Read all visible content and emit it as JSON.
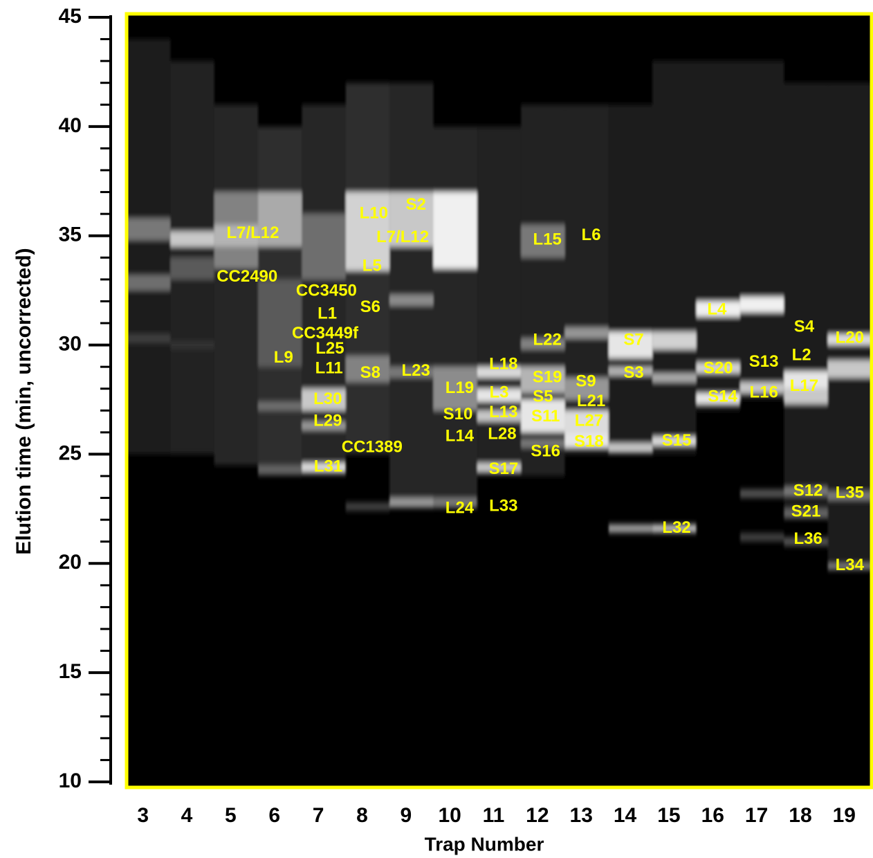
{
  "chart_data": {
    "type": "band-heatmap",
    "xlabel": "Trap Number",
    "ylabel": "Elution time (min, uncorrected)",
    "xlim": [
      2.5,
      19.5
    ],
    "xticks": [
      3,
      4,
      5,
      6,
      7,
      8,
      9,
      10,
      11,
      12,
      13,
      14,
      15,
      16,
      17,
      18,
      19
    ],
    "ylim": [
      10,
      45
    ],
    "yticks": [
      10,
      15,
      20,
      25,
      30,
      35,
      40,
      45
    ],
    "yminorticks": [
      11,
      12,
      13,
      14,
      16,
      17,
      18,
      19,
      21,
      22,
      23,
      24,
      26,
      27,
      28,
      29,
      31,
      32,
      33,
      34,
      36,
      37,
      38,
      39,
      41,
      42,
      43,
      44
    ],
    "frame_color": "#ffff00",
    "label_color": "#ffff00",
    "columns": [
      {
        "trap": 3,
        "bands": [
          {
            "y0": 25,
            "y1": 44,
            "level": 30
          },
          {
            "y0": 34.8,
            "y1": 35.8,
            "level": 120
          },
          {
            "y0": 32.5,
            "y1": 33.2,
            "level": 110
          },
          {
            "y0": 30.1,
            "y1": 30.5,
            "level": 60
          }
        ]
      },
      {
        "trap": 4,
        "bands": [
          {
            "y0": 25,
            "y1": 43,
            "level": 35
          },
          {
            "y0": 33,
            "y1": 34,
            "level": 90
          },
          {
            "y0": 34.5,
            "y1": 35.2,
            "level": 200
          },
          {
            "y0": 29.8,
            "y1": 30.2,
            "level": 50
          }
        ]
      },
      {
        "trap": 5,
        "bands": [
          {
            "y0": 24.5,
            "y1": 41,
            "level": 40
          },
          {
            "y0": 33.5,
            "y1": 37,
            "level": 130
          },
          {
            "y0": 34.5,
            "y1": 35.5,
            "level": 180
          }
        ]
      },
      {
        "trap": 6,
        "bands": [
          {
            "y0": 24,
            "y1": 40,
            "level": 45
          },
          {
            "y0": 29,
            "y1": 33,
            "level": 90
          },
          {
            "y0": 34.5,
            "y1": 37,
            "level": 170
          },
          {
            "y0": 27,
            "y1": 27.4,
            "level": 110
          },
          {
            "y0": 24.1,
            "y1": 24.5,
            "level": 100
          }
        ]
      },
      {
        "trap": 7,
        "bands": [
          {
            "y0": 24,
            "y1": 41,
            "level": 40
          },
          {
            "y0": 33,
            "y1": 36,
            "level": 110
          },
          {
            "y0": 27,
            "y1": 28,
            "level": 200
          },
          {
            "y0": 26.1,
            "y1": 26.5,
            "level": 150
          },
          {
            "y0": 24.2,
            "y1": 24.6,
            "level": 220
          }
        ]
      },
      {
        "trap": 8,
        "bands": [
          {
            "y0": 25,
            "y1": 42,
            "level": 45
          },
          {
            "y0": 33.4,
            "y1": 37,
            "level": 210
          },
          {
            "y0": 28.3,
            "y1": 29.5,
            "level": 130
          },
          {
            "y0": 22.4,
            "y1": 22.8,
            "level": 60
          }
        ]
      },
      {
        "trap": 9,
        "bands": [
          {
            "y0": 22.5,
            "y1": 42,
            "level": 40
          },
          {
            "y0": 34.5,
            "y1": 37,
            "level": 200
          },
          {
            "y0": 31.8,
            "y1": 32.3,
            "level": 140
          },
          {
            "y0": 28.5,
            "y1": 29,
            "level": 120
          },
          {
            "y0": 22.6,
            "y1": 23,
            "level": 150
          }
        ]
      },
      {
        "trap": 10,
        "bands": [
          {
            "y0": 22.5,
            "y1": 40,
            "level": 40
          },
          {
            "y0": 33.5,
            "y1": 37,
            "level": 240
          },
          {
            "y0": 27,
            "y1": 29,
            "level": 140
          },
          {
            "y0": 22.6,
            "y1": 23,
            "level": 120
          }
        ]
      },
      {
        "trap": 11,
        "bands": [
          {
            "y0": 24,
            "y1": 40,
            "level": 35
          },
          {
            "y0": 28.5,
            "y1": 29,
            "level": 220
          },
          {
            "y0": 27.4,
            "y1": 28,
            "level": 230
          },
          {
            "y0": 26.5,
            "y1": 27,
            "level": 200
          },
          {
            "y0": 24.2,
            "y1": 24.6,
            "level": 200
          }
        ]
      },
      {
        "trap": 12,
        "bands": [
          {
            "y0": 24,
            "y1": 41,
            "level": 35
          },
          {
            "y0": 34,
            "y1": 35.5,
            "level": 120
          },
          {
            "y0": 29.8,
            "y1": 30.3,
            "level": 130
          },
          {
            "y0": 27.8,
            "y1": 29,
            "level": 180
          },
          {
            "y0": 26,
            "y1": 27.5,
            "level": 230
          },
          {
            "y0": 25.3,
            "y1": 25.7,
            "level": 120
          }
        ]
      },
      {
        "trap": 13,
        "bands": [
          {
            "y0": 25,
            "y1": 41,
            "level": 35
          },
          {
            "y0": 30.3,
            "y1": 30.8,
            "level": 150
          },
          {
            "y0": 27.5,
            "y1": 28.5,
            "level": 150
          },
          {
            "y0": 26,
            "y1": 27,
            "level": 220
          },
          {
            "y0": 25.3,
            "y1": 26,
            "level": 230
          }
        ]
      },
      {
        "trap": 14,
        "bands": [
          {
            "y0": 25,
            "y1": 41,
            "level": 30
          },
          {
            "y0": 29.4,
            "y1": 30.6,
            "level": 230
          },
          {
            "y0": 28.6,
            "y1": 29,
            "level": 180
          },
          {
            "y0": 25.1,
            "y1": 25.5,
            "level": 200
          },
          {
            "y0": 21.4,
            "y1": 21.8,
            "level": 150
          }
        ]
      },
      {
        "trap": 15,
        "bands": [
          {
            "y0": 25,
            "y1": 43,
            "level": 30
          },
          {
            "y0": 29.8,
            "y1": 30.6,
            "level": 210
          },
          {
            "y0": 28.3,
            "y1": 28.7,
            "level": 170
          },
          {
            "y0": 25.4,
            "y1": 25.8,
            "level": 220
          },
          {
            "y0": 21.4,
            "y1": 21.8,
            "level": 180
          }
        ]
      },
      {
        "trap": 16,
        "bands": [
          {
            "y0": 27,
            "y1": 43,
            "level": 30
          },
          {
            "y0": 31.3,
            "y1": 32,
            "level": 240
          },
          {
            "y0": 28.7,
            "y1": 29.2,
            "level": 210
          },
          {
            "y0": 27.3,
            "y1": 27.8,
            "level": 230
          }
        ]
      },
      {
        "trap": 17,
        "bands": [
          {
            "y0": 27.5,
            "y1": 43,
            "level": 30
          },
          {
            "y0": 31.5,
            "y1": 32.2,
            "level": 240
          },
          {
            "y0": 27.8,
            "y1": 28.3,
            "level": 200
          },
          {
            "y0": 23,
            "y1": 23.4,
            "level": 80
          },
          {
            "y0": 21,
            "y1": 21.4,
            "level": 60
          }
        ]
      },
      {
        "trap": 18,
        "bands": [
          {
            "y0": 22,
            "y1": 42,
            "level": 30
          },
          {
            "y0": 28,
            "y1": 28.8,
            "level": 230
          },
          {
            "y0": 27.3,
            "y1": 28,
            "level": 200
          },
          {
            "y0": 23.1,
            "y1": 23.5,
            "level": 120
          },
          {
            "y0": 22.1,
            "y1": 22.5,
            "level": 100
          },
          {
            "y0": 20.8,
            "y1": 21.2,
            "level": 80
          }
        ]
      },
      {
        "trap": 19,
        "bands": [
          {
            "y0": 19.7,
            "y1": 42,
            "level": 30
          },
          {
            "y0": 30,
            "y1": 30.5,
            "level": 220
          },
          {
            "y0": 28.5,
            "y1": 29.3,
            "level": 200
          },
          {
            "y0": 22.9,
            "y1": 23.3,
            "level": 120
          },
          {
            "y0": 19.7,
            "y1": 20,
            "level": 120
          }
        ]
      }
    ],
    "annotations": [
      {
        "text": "L7/L12",
        "x": 5.38,
        "y": 35.1
      },
      {
        "text": "CC2490",
        "x": 5.25,
        "y": 33.1
      },
      {
        "text": "CC3450",
        "x": 7.06,
        "y": 32.45
      },
      {
        "text": "L1",
        "x": 7.08,
        "y": 31.4
      },
      {
        "text": "CC3449f",
        "x": 7.03,
        "y": 30.5
      },
      {
        "text": "L25",
        "x": 7.14,
        "y": 29.8
      },
      {
        "text": "L9",
        "x": 6.08,
        "y": 29.4
      },
      {
        "text": "L11",
        "x": 7.12,
        "y": 28.9
      },
      {
        "text": "L30",
        "x": 7.09,
        "y": 27.5
      },
      {
        "text": "L29",
        "x": 7.09,
        "y": 26.5
      },
      {
        "text": "CC1389",
        "x": 8.1,
        "y": 25.3
      },
      {
        "text": "L31",
        "x": 7.1,
        "y": 24.4
      },
      {
        "text": "L10",
        "x": 8.14,
        "y": 36.0
      },
      {
        "text": "S2",
        "x": 9.1,
        "y": 36.4
      },
      {
        "text": "L7/L12",
        "x": 8.8,
        "y": 34.9
      },
      {
        "text": "L5",
        "x": 8.1,
        "y": 33.6
      },
      {
        "text": "S6",
        "x": 8.06,
        "y": 31.7
      },
      {
        "text": "S8",
        "x": 8.06,
        "y": 28.7
      },
      {
        "text": "L23",
        "x": 9.1,
        "y": 28.8
      },
      {
        "text": "L19",
        "x": 10.1,
        "y": 28.0
      },
      {
        "text": "S10",
        "x": 10.06,
        "y": 26.8
      },
      {
        "text": "L14",
        "x": 10.1,
        "y": 25.8
      },
      {
        "text": "L24",
        "x": 10.1,
        "y": 22.5
      },
      {
        "text": "L18",
        "x": 11.1,
        "y": 29.1
      },
      {
        "text": "L3",
        "x": 11.0,
        "y": 27.8
      },
      {
        "text": "L13",
        "x": 11.1,
        "y": 26.9
      },
      {
        "text": "L28",
        "x": 11.07,
        "y": 25.9
      },
      {
        "text": "S17",
        "x": 11.1,
        "y": 24.3
      },
      {
        "text": "L33",
        "x": 11.1,
        "y": 22.6
      },
      {
        "text": "L15",
        "x": 12.1,
        "y": 34.8
      },
      {
        "text": "L22",
        "x": 12.1,
        "y": 30.2
      },
      {
        "text": "S19",
        "x": 12.1,
        "y": 28.5
      },
      {
        "text": "S5",
        "x": 12.0,
        "y": 27.6
      },
      {
        "text": "S11",
        "x": 12.06,
        "y": 26.7
      },
      {
        "text": "S16",
        "x": 12.06,
        "y": 25.1
      },
      {
        "text": "L6",
        "x": 13.1,
        "y": 35.0
      },
      {
        "text": "S9",
        "x": 12.98,
        "y": 28.3
      },
      {
        "text": "L21",
        "x": 13.1,
        "y": 27.4
      },
      {
        "text": "L27",
        "x": 13.05,
        "y": 26.5
      },
      {
        "text": "S18",
        "x": 13.05,
        "y": 25.55
      },
      {
        "text": "S7",
        "x": 14.07,
        "y": 30.2
      },
      {
        "text": "S3",
        "x": 14.07,
        "y": 28.7
      },
      {
        "text": "S15",
        "x": 15.05,
        "y": 25.6
      },
      {
        "text": "L32",
        "x": 15.05,
        "y": 21.6
      },
      {
        "text": "L4",
        "x": 15.97,
        "y": 31.6
      },
      {
        "text": "S20",
        "x": 16.0,
        "y": 28.9
      },
      {
        "text": "S14",
        "x": 16.1,
        "y": 27.6
      },
      {
        "text": "S13",
        "x": 17.04,
        "y": 29.2
      },
      {
        "text": "L16",
        "x": 17.04,
        "y": 27.8
      },
      {
        "text": "S4",
        "x": 17.96,
        "y": 30.8
      },
      {
        "text": "L2",
        "x": 17.9,
        "y": 29.5
      },
      {
        "text": "L17",
        "x": 17.96,
        "y": 28.1
      },
      {
        "text": "S12",
        "x": 18.05,
        "y": 23.3
      },
      {
        "text": "S21",
        "x": 18.0,
        "y": 22.35
      },
      {
        "text": "L36",
        "x": 18.05,
        "y": 21.1
      },
      {
        "text": "L35",
        "x": 19.0,
        "y": 23.2
      },
      {
        "text": "L20",
        "x": 19.0,
        "y": 30.3
      },
      {
        "text": "L34",
        "x": 19.0,
        "y": 19.9
      }
    ]
  }
}
